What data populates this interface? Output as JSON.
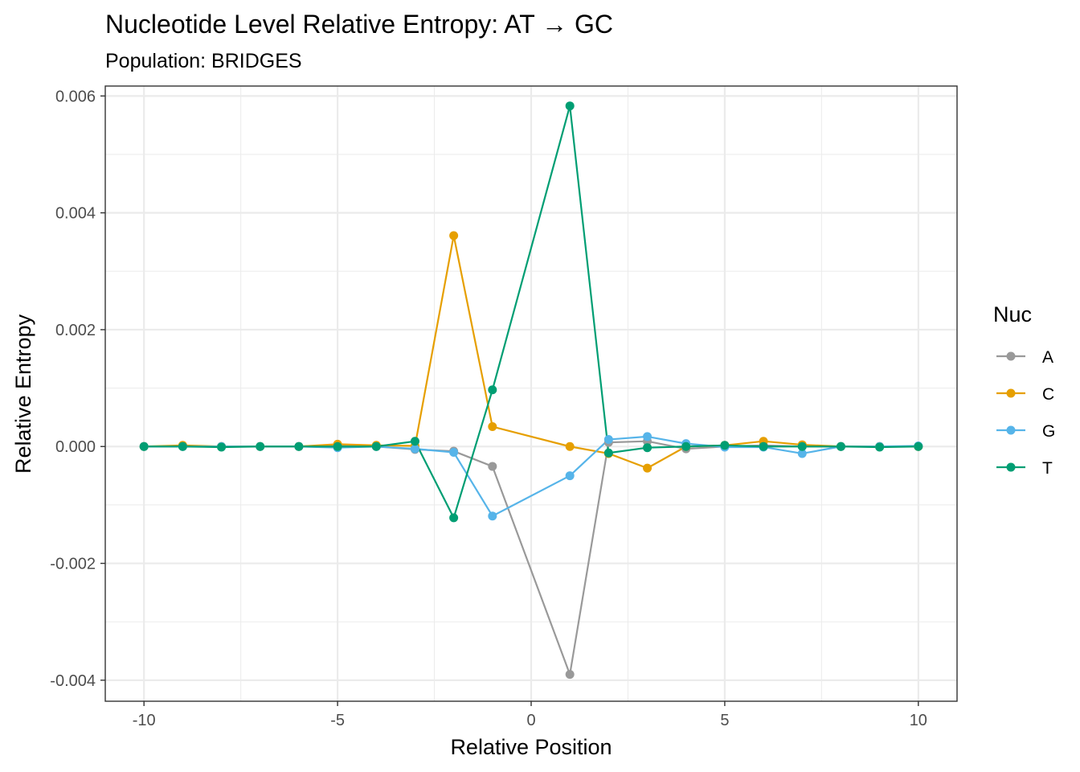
{
  "chart_data": {
    "type": "line",
    "title": "Nucleotide Level Relative Entropy: AT → GC",
    "subtitle": "Population: BRIDGES",
    "xlabel": "Relative Position",
    "ylabel": "Relative Entropy",
    "xlim": [
      -11,
      11
    ],
    "ylim": [
      -0.00436,
      0.00617
    ],
    "x_ticks": [
      -10,
      -5,
      0,
      5,
      10
    ],
    "x_tick_labels": [
      "-10",
      "-5",
      "0",
      "5",
      "10"
    ],
    "y_ticks": [
      -0.004,
      -0.002,
      0.0,
      0.002,
      0.004,
      0.006
    ],
    "y_tick_labels": [
      "-0.004",
      "-0.002",
      "0.000",
      "0.002",
      "0.004",
      "0.006"
    ],
    "grid": true,
    "legend": {
      "title": "Nuc",
      "position": "right"
    },
    "x": [
      -10,
      -9,
      -8,
      -7,
      -6,
      -5,
      -4,
      -3,
      -2,
      -1,
      1,
      2,
      3,
      4,
      5,
      6,
      7,
      8,
      9,
      10
    ],
    "series": [
      {
        "name": "A",
        "color": "#999999",
        "values": [
          0.0,
          0.0,
          0.0,
          0.0,
          0.0,
          2e-05,
          0.0,
          -5e-05,
          -8e-05,
          -0.00034,
          -0.0039,
          7e-05,
          9e-05,
          -4e-05,
          0.0,
          2e-05,
          0.0,
          0.0,
          0.0,
          0.0
        ]
      },
      {
        "name": "C",
        "color": "#E69F00",
        "values": [
          0.0,
          2e-05,
          0.0,
          0.0,
          0.0,
          4e-05,
          2e-05,
          1e-05,
          0.00361,
          0.00034,
          0.0,
          -0.00012,
          -0.00037,
          0.0,
          2e-05,
          9e-05,
          3e-05,
          0.0,
          0.0,
          0.0
        ]
      },
      {
        "name": "G",
        "color": "#56B4E9",
        "values": [
          0.0,
          0.0,
          0.0,
          0.0,
          0.0,
          -2e-05,
          0.0,
          -4e-05,
          -0.0001,
          -0.00119,
          -0.0005,
          0.00012,
          0.00017,
          5e-05,
          -1e-05,
          -1e-05,
          -0.00012,
          0.0,
          0.0,
          1e-05
        ]
      },
      {
        "name": "T",
        "color": "#009E73",
        "values": [
          0.0,
          0.0,
          -1e-05,
          0.0,
          0.0,
          0.0,
          0.0,
          9e-05,
          -0.00122,
          0.00097,
          0.00583,
          -0.00011,
          -2e-05,
          0.0,
          2e-05,
          0.0,
          0.0,
          0.0,
          -1e-05,
          0.0
        ]
      }
    ]
  }
}
